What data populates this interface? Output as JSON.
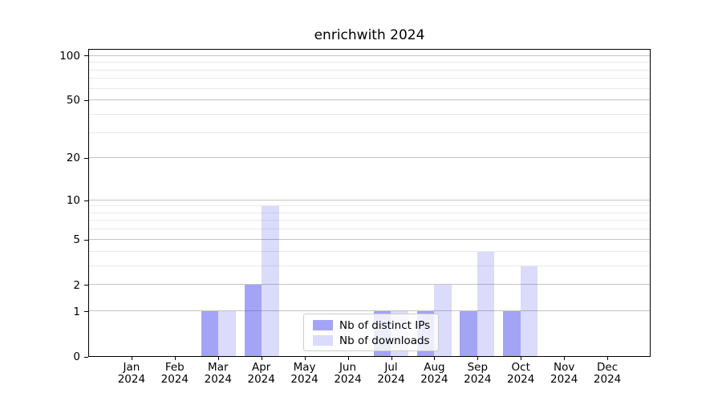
{
  "title": "enrichwith 2024",
  "chart_data": {
    "type": "bar",
    "title": "enrichwith 2024",
    "x_months": [
      "Jan",
      "Feb",
      "Mar",
      "Apr",
      "May",
      "Jun",
      "Jul",
      "Aug",
      "Sep",
      "Oct",
      "Nov",
      "Dec"
    ],
    "x_year": "2024",
    "series": [
      {
        "name": "Nb of distinct IPs",
        "color": "rgba(62,62,235,0.47)",
        "values": [
          0,
          0,
          1,
          2,
          0,
          0,
          1,
          1,
          1,
          1,
          0,
          0
        ]
      },
      {
        "name": "Nb of downloads",
        "color": "rgba(62,62,235,0.19)",
        "values": [
          0,
          0,
          1,
          9,
          0,
          0,
          1,
          2,
          4,
          3,
          0,
          0
        ]
      }
    ],
    "xlabel": "",
    "ylabel": "",
    "yscale": "log1p",
    "ylim": [
      0,
      110
    ],
    "yticks": [
      0,
      1,
      2,
      5,
      10,
      20,
      50,
      100
    ],
    "yticks_minor": [
      3,
      4,
      6,
      7,
      8,
      9,
      30,
      40,
      60,
      70,
      80,
      90
    ],
    "grid": true,
    "legend": {
      "position": "lower center",
      "entries": [
        "Nb of distinct IPs",
        "Nb of downloads"
      ]
    }
  },
  "colors": {
    "background": "#ffffff",
    "spine": "#000000",
    "grid_major": "#c3c3c3",
    "grid_minor": "#e9e9e9",
    "legend_border": "#cccccc",
    "bar_dark_rendered": "#a8a8f6",
    "bar_light_rendered": "#d9d9fb"
  }
}
